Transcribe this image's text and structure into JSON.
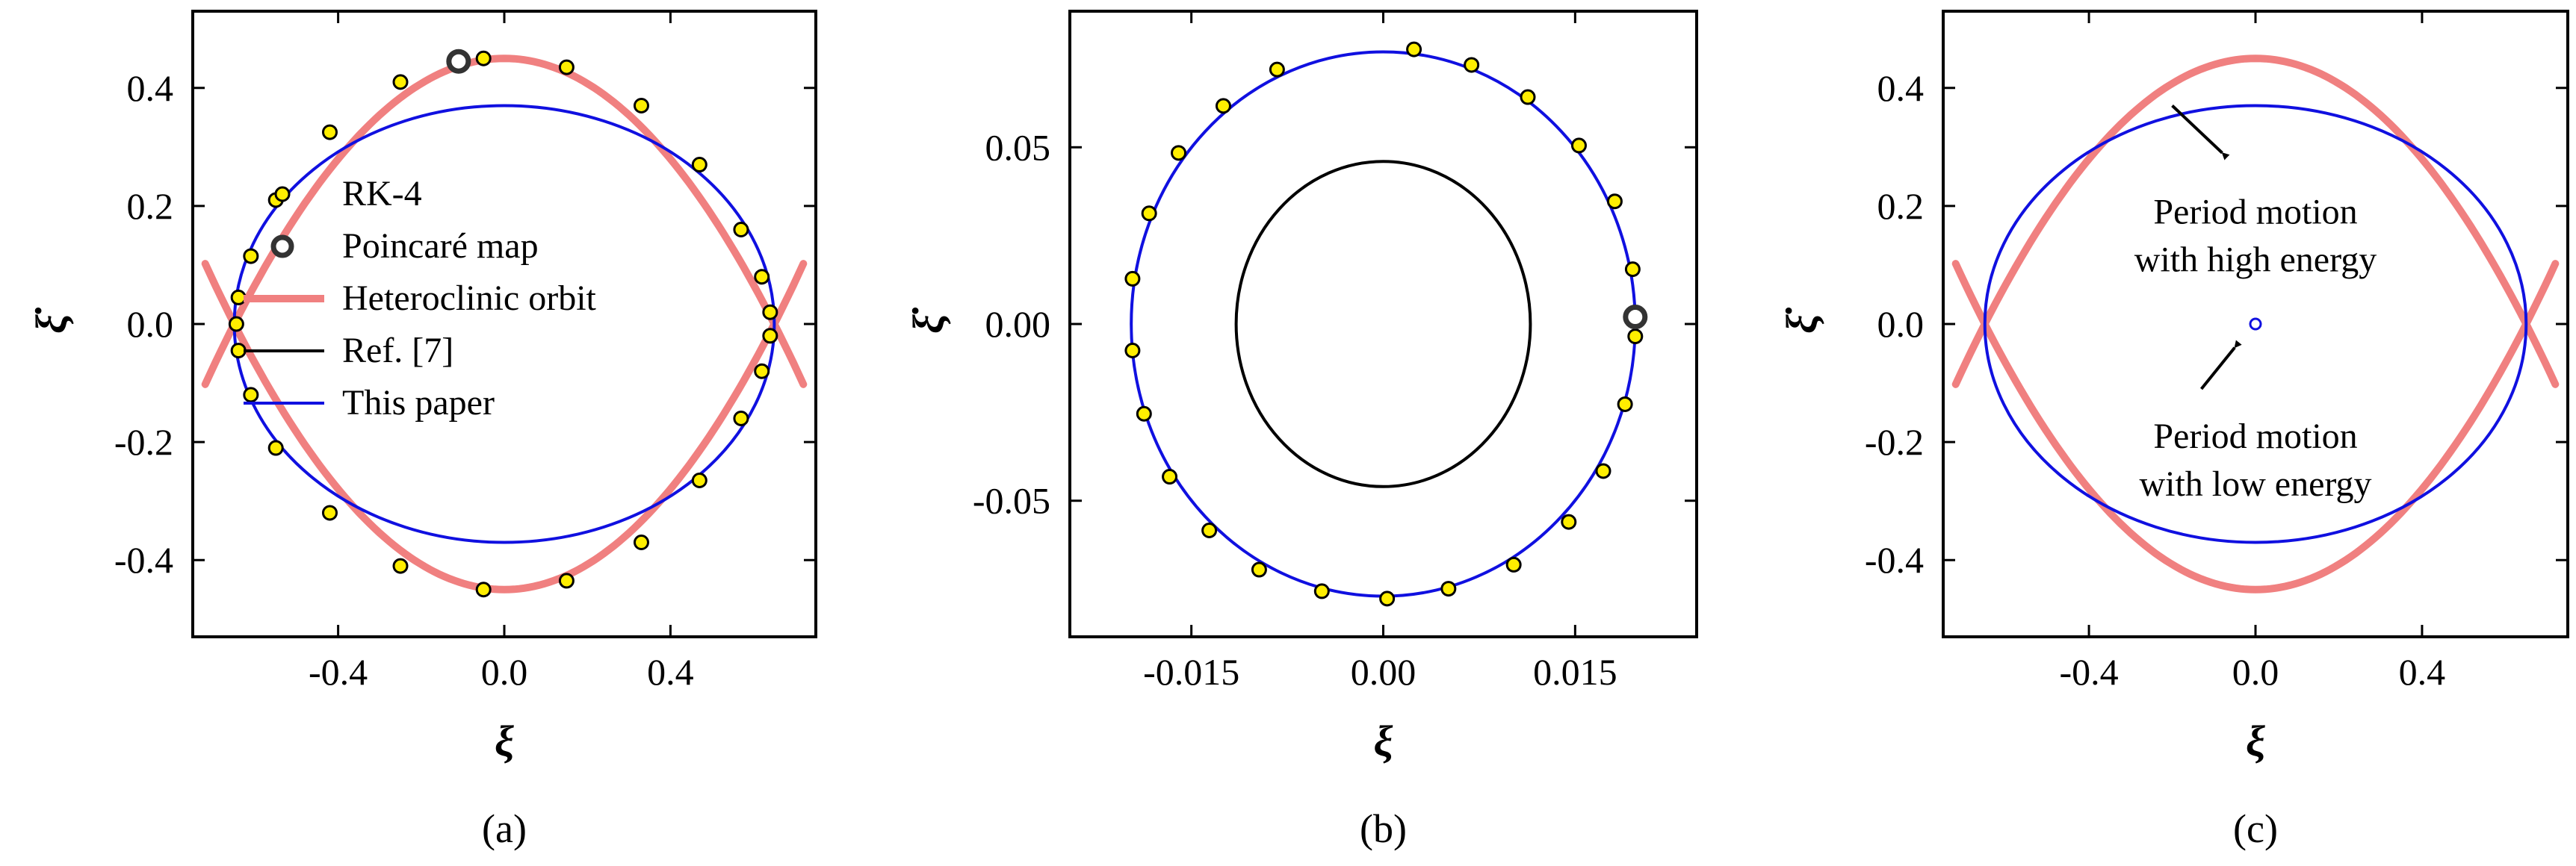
{
  "colors": {
    "rk4": "#ffee00",
    "poincare": "#333333",
    "heteroclinic": "#f08080",
    "ref7": "#000000",
    "this_paper": "#1010e0"
  },
  "chart_data": [
    {
      "type": "line",
      "panel_label": "(a)",
      "xlabel": "ξ",
      "ylabel": "ξ̇",
      "xlim": [
        -0.75,
        0.75
      ],
      "ylim": [
        -0.53,
        0.53
      ],
      "xticks": [
        -0.4,
        0.0,
        0.4
      ],
      "xtick_labels": [
        "-0.4",
        "0.0",
        "0.4"
      ],
      "yticks": [
        0.4,
        0.2,
        0.0,
        -0.2,
        -0.4
      ],
      "ytick_labels": [
        "0.4",
        "0.2",
        "0.0",
        "-0.2",
        "-0.4"
      ],
      "legend_position": "center-left",
      "legend": [
        {
          "key": "rk4",
          "label": "RK-4"
        },
        {
          "key": "poincare",
          "label": "Poincaré map"
        },
        {
          "key": "heteroclinic",
          "label": "Heteroclinic orbit"
        },
        {
          "key": "ref7",
          "label": "Ref. [7]"
        },
        {
          "key": "this_paper",
          "label": "This paper"
        }
      ],
      "series": [
        {
          "key": "heteroclinic",
          "kind": "heteroclinic",
          "xmax": 0.65,
          "ymax": 0.45,
          "xext": 0.72
        },
        {
          "key": "this_paper",
          "kind": "ellipse",
          "a": 0.65,
          "b": 0.37
        },
        {
          "key": "rk4",
          "kind": "points",
          "points": [
            [
              -0.05,
              0.45
            ],
            [
              0.15,
              0.435
            ],
            [
              0.33,
              0.37
            ],
            [
              0.47,
              0.27
            ],
            [
              0.57,
              0.16
            ],
            [
              0.62,
              0.08
            ],
            [
              0.64,
              0.02
            ],
            [
              0.64,
              -0.02
            ],
            [
              0.62,
              -0.08
            ],
            [
              0.57,
              -0.16
            ],
            [
              0.47,
              -0.265
            ],
            [
              0.33,
              -0.37
            ],
            [
              0.15,
              -0.435
            ],
            [
              -0.05,
              -0.45
            ],
            [
              -0.25,
              -0.41
            ],
            [
              -0.42,
              -0.32
            ],
            [
              -0.55,
              -0.21
            ],
            [
              -0.61,
              -0.12
            ],
            [
              -0.64,
              -0.045
            ],
            [
              -0.645,
              0.0
            ],
            [
              -0.64,
              0.045
            ],
            [
              -0.61,
              0.115
            ],
            [
              -0.55,
              0.21
            ],
            [
              -0.42,
              0.325
            ],
            [
              -0.25,
              0.41
            ]
          ]
        },
        {
          "key": "poincare",
          "kind": "markers",
          "points": [
            [
              -0.11,
              0.445
            ]
          ]
        }
      ]
    },
    {
      "type": "line",
      "panel_label": "(b)",
      "xlabel": "ξ",
      "ylabel": "ξ̇",
      "xlim": [
        -0.0245,
        0.0245
      ],
      "ylim": [
        -0.0885,
        0.0885
      ],
      "xticks": [
        -0.015,
        0.0,
        0.015
      ],
      "xtick_labels": [
        "-0.015",
        "0.00",
        "0.015"
      ],
      "yticks": [
        0.05,
        0.0,
        -0.05
      ],
      "ytick_labels": [
        "0.05",
        "0.00",
        "-0.05"
      ],
      "series": [
        {
          "key": "ref7",
          "kind": "ellipse",
          "a": 0.0115,
          "b": 0.046
        },
        {
          "key": "this_paper",
          "kind": "ellipse",
          "a": 0.0197,
          "b": 0.077
        },
        {
          "key": "rk4",
          "kind": "points",
          "points": [
            [
              0.0024,
              0.0777
            ],
            [
              0.0069,
              0.0733
            ],
            [
              0.0113,
              0.0642
            ],
            [
              0.0153,
              0.0505
            ],
            [
              0.0181,
              0.0347
            ],
            [
              0.0195,
              0.0155
            ],
            [
              0.0197,
              -0.0035
            ],
            [
              0.0189,
              -0.0227
            ],
            [
              0.0172,
              -0.0416
            ],
            [
              0.0145,
              -0.056
            ],
            [
              0.0102,
              -0.0681
            ],
            [
              0.0051,
              -0.0749
            ],
            [
              0.0003,
              -0.0777
            ],
            [
              -0.0048,
              -0.0756
            ],
            [
              -0.0097,
              -0.0695
            ],
            [
              -0.0136,
              -0.0584
            ],
            [
              -0.0167,
              -0.0432
            ],
            [
              -0.0187,
              -0.0254
            ],
            [
              -0.0196,
              -0.0075
            ],
            [
              -0.0196,
              0.0128
            ],
            [
              -0.0183,
              0.0313
            ],
            [
              -0.016,
              0.0484
            ],
            [
              -0.0125,
              0.0617
            ],
            [
              -0.0083,
              0.072
            ]
          ]
        },
        {
          "key": "poincare",
          "kind": "markers",
          "points": [
            [
              0.0197,
              0.002
            ]
          ]
        }
      ]
    },
    {
      "type": "line",
      "panel_label": "(c)",
      "xlabel": "ξ",
      "ylabel": "ξ̇",
      "xlim": [
        -0.75,
        0.75
      ],
      "ylim": [
        -0.53,
        0.53
      ],
      "xticks": [
        -0.4,
        0.0,
        0.4
      ],
      "xtick_labels": [
        "-0.4",
        "0.0",
        "0.4"
      ],
      "yticks": [
        0.4,
        0.2,
        0.0,
        -0.2,
        -0.4
      ],
      "ytick_labels": [
        "0.4",
        "0.2",
        "0.0",
        "-0.2",
        "-0.4"
      ],
      "series": [
        {
          "key": "heteroclinic",
          "kind": "heteroclinic",
          "xmax": 0.65,
          "ymax": 0.45,
          "xext": 0.72
        },
        {
          "key": "this_paper",
          "kind": "ellipse",
          "a": 0.65,
          "b": 0.37
        },
        {
          "key": "this_paper",
          "kind": "smallcircle",
          "x": 0.0,
          "y": 0.0
        }
      ],
      "annotations": [
        {
          "lines": [
            "Period motion",
            "with high energy"
          ],
          "text_at": [
            0.0,
            0.17
          ],
          "arrow_from": [
            -0.08,
            0.29
          ],
          "arrow_to": [
            -0.2,
            0.37
          ]
        },
        {
          "lines": [
            "Period motion",
            "with low energy"
          ],
          "text_at": [
            0.0,
            -0.21
          ],
          "arrow_from": [
            -0.05,
            -0.04
          ],
          "arrow_to": [
            -0.13,
            -0.11
          ]
        }
      ]
    }
  ]
}
